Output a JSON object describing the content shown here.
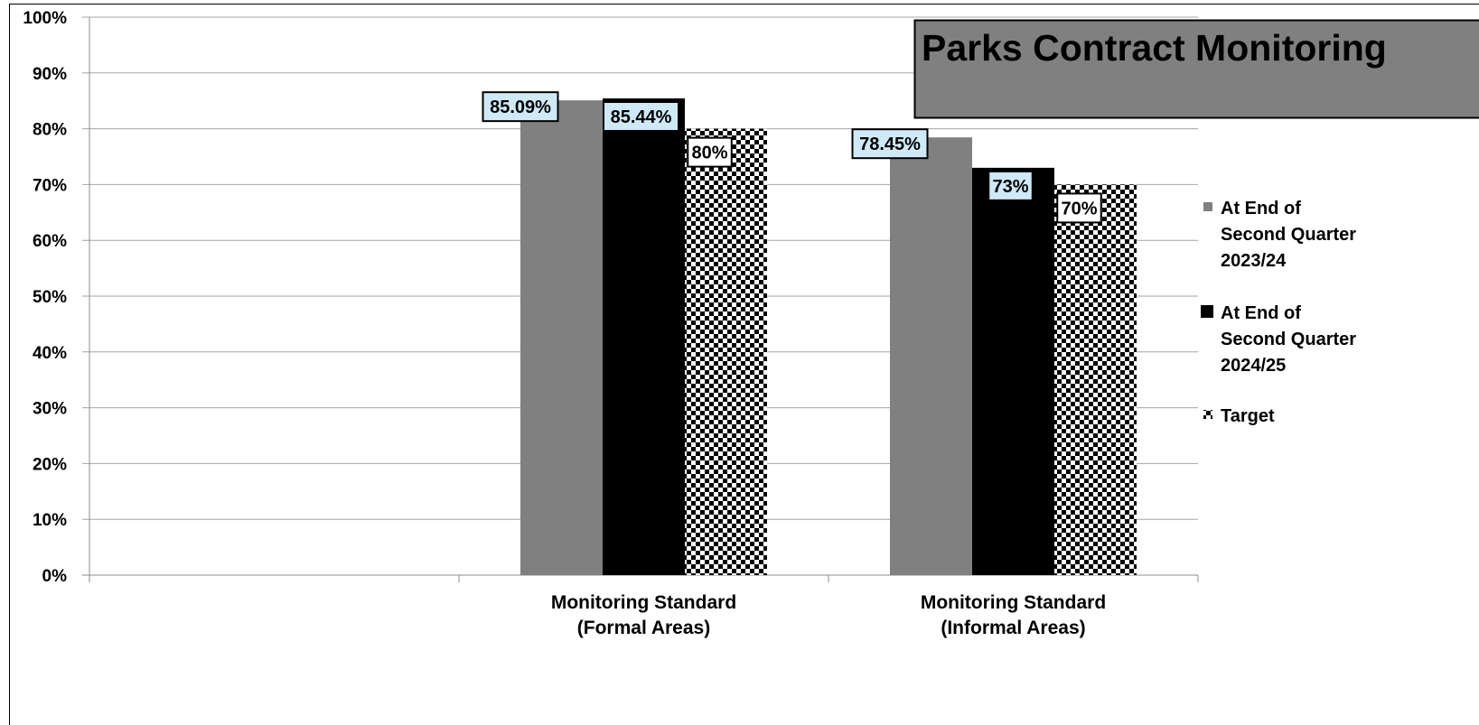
{
  "chart_data": {
    "type": "bar",
    "title": "Parks Contract Monitoring",
    "categories": [
      "",
      "Monitoring Standard\n(Formal Areas)",
      "Monitoring Standard\n(Informal Areas)"
    ],
    "series": [
      {
        "name": "At End of Second Quarter 2023/24",
        "values": [
          null,
          85.09,
          78.45
        ],
        "labels": [
          "",
          "85.09%",
          "78.45%"
        ],
        "color": "#808080",
        "pattern": "solid"
      },
      {
        "name": "At End of Second Quarter 2024/25",
        "values": [
          null,
          85.44,
          73
        ],
        "labels": [
          "",
          "85.44%",
          "73%"
        ],
        "color": "#000000",
        "pattern": "solid"
      },
      {
        "name": "Target",
        "values": [
          null,
          80,
          70
        ],
        "labels": [
          "",
          "80%",
          "70%"
        ],
        "color": "#000000",
        "pattern": "checkerboard"
      }
    ],
    "yticks": [
      "0%",
      "10%",
      "20%",
      "30%",
      "40%",
      "50%",
      "60%",
      "70%",
      "80%",
      "90%",
      "100%"
    ],
    "ylim": [
      0,
      100
    ],
    "xlabel": "",
    "ylabel": "",
    "grid": true,
    "legend": "right",
    "colors": {
      "label_fill": "#cfe9f7",
      "title_box": "#808080"
    }
  }
}
